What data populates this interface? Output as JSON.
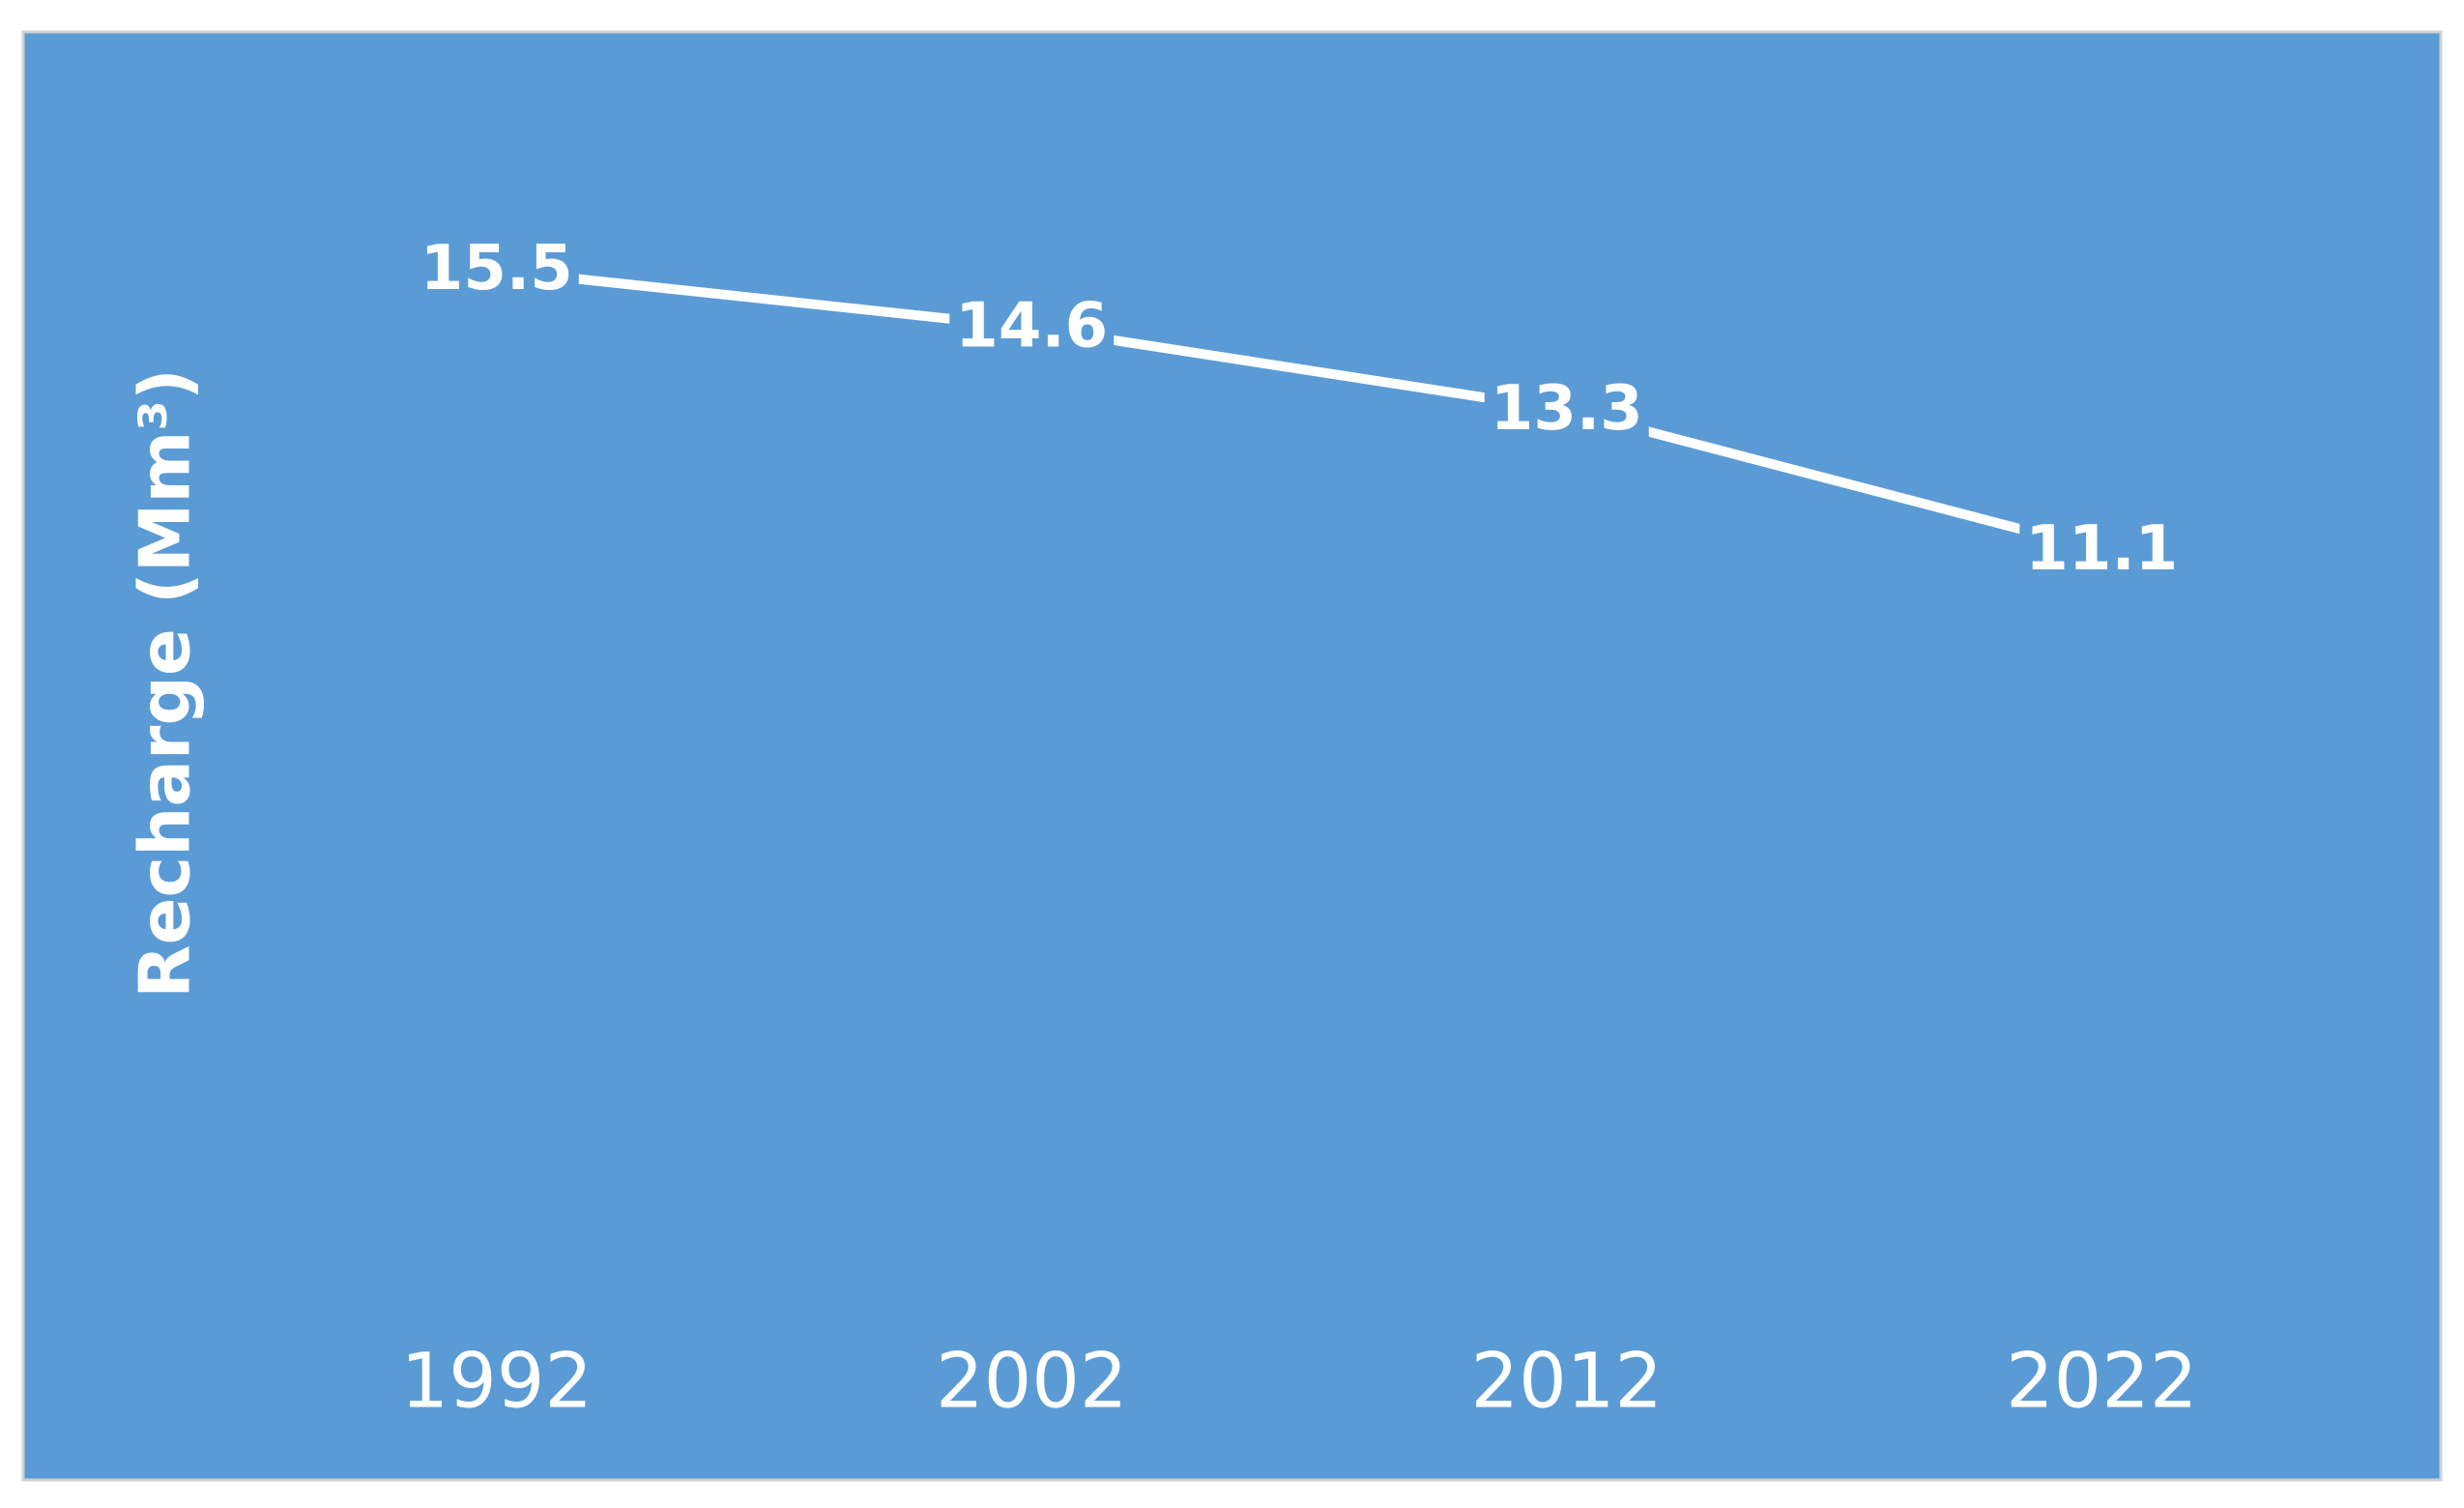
{
  "chart_data": {
    "type": "line",
    "y_axis_label": "Recharge (Mm³)",
    "categories": [
      "1992",
      "2002",
      "2012",
      "2022"
    ],
    "values": [
      15.5,
      14.6,
      13.3,
      11.1
    ],
    "color": "#ffffff",
    "background": "#5b9bd5",
    "ylim": [
      0,
      18
    ],
    "drop_lines": true
  }
}
